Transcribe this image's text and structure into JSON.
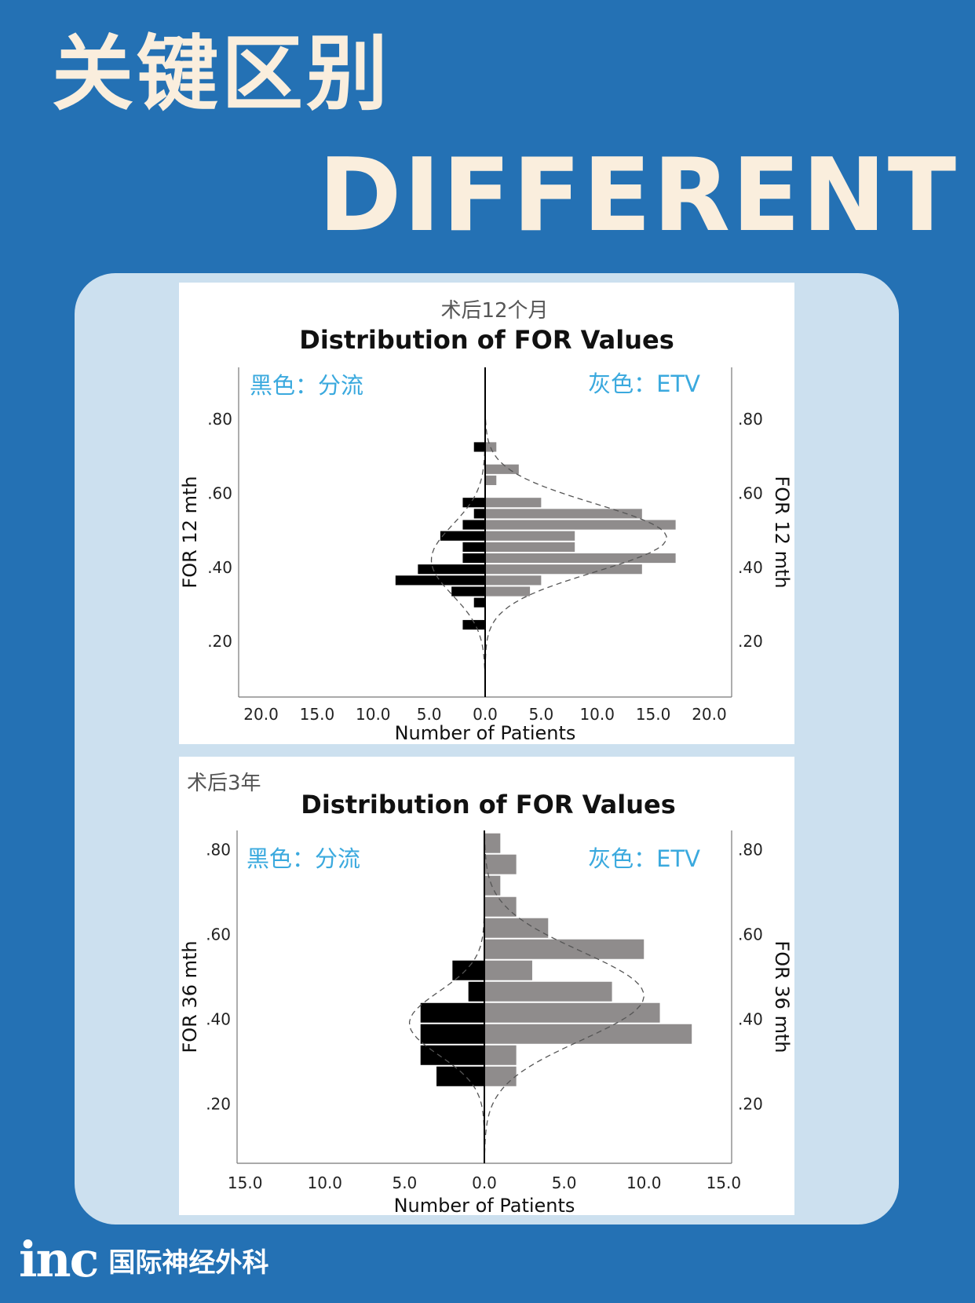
{
  "header": {
    "title": "关键区别",
    "subtitle": "DIFFERENT"
  },
  "footer": {
    "logo": "inc",
    "org": "国际神经外科"
  },
  "colors": {
    "background": "#2471b4",
    "panel": "#cce0ef",
    "shunt": "#000000",
    "etv": "#8f8c8c",
    "legend_text": "#3aa9de",
    "title_text": "#faeedd"
  },
  "chart_data": [
    {
      "type": "bar",
      "orientation": "horizontal-back-to-back",
      "caption": "术后12个月",
      "title": "Distribution of FOR Values",
      "xlabel": "Number of Patients",
      "ylabel": "FOR 12 mth",
      "ylabel_right": "FOR 12 mth",
      "legend_left": "黑色：分流",
      "legend_right": "灰色：ETV",
      "x_ticks": [
        "20.0",
        "15.0",
        "10.0",
        "5.0",
        "0.0",
        "5.0",
        "10.0",
        "15.0",
        "20.0"
      ],
      "x_range": [
        -22,
        22
      ],
      "y_ticks": [
        ".20",
        ".40",
        ".60",
        ".80"
      ],
      "y_range": [
        0.05,
        0.94
      ],
      "grid": false,
      "bin_width": 0.03,
      "series": [
        {
          "name": "黑色：分流",
          "side": "left",
          "bins": [
            {
              "y0": 0.23,
              "y1": 0.26,
              "value": 2
            },
            {
              "y0": 0.29,
              "y1": 0.32,
              "value": 1
            },
            {
              "y0": 0.32,
              "y1": 0.35,
              "value": 3
            },
            {
              "y0": 0.35,
              "y1": 0.38,
              "value": 8
            },
            {
              "y0": 0.38,
              "y1": 0.41,
              "value": 6
            },
            {
              "y0": 0.41,
              "y1": 0.44,
              "value": 2
            },
            {
              "y0": 0.44,
              "y1": 0.47,
              "value": 2
            },
            {
              "y0": 0.47,
              "y1": 0.5,
              "value": 4
            },
            {
              "y0": 0.5,
              "y1": 0.53,
              "value": 2
            },
            {
              "y0": 0.53,
              "y1": 0.56,
              "value": 1
            },
            {
              "y0": 0.56,
              "y1": 0.59,
              "value": 2
            },
            {
              "y0": 0.71,
              "y1": 0.74,
              "value": 1
            }
          ],
          "curve": {
            "mean": 0.42,
            "sd": 0.095,
            "peak": 4.8
          }
        },
        {
          "name": "灰色：ETV",
          "side": "right",
          "bins": [
            {
              "y0": 0.32,
              "y1": 0.35,
              "value": 4
            },
            {
              "y0": 0.35,
              "y1": 0.38,
              "value": 5
            },
            {
              "y0": 0.38,
              "y1": 0.41,
              "value": 14
            },
            {
              "y0": 0.41,
              "y1": 0.44,
              "value": 17
            },
            {
              "y0": 0.44,
              "y1": 0.47,
              "value": 8
            },
            {
              "y0": 0.47,
              "y1": 0.5,
              "value": 8
            },
            {
              "y0": 0.5,
              "y1": 0.53,
              "value": 17
            },
            {
              "y0": 0.53,
              "y1": 0.56,
              "value": 14
            },
            {
              "y0": 0.56,
              "y1": 0.59,
              "value": 5
            },
            {
              "y0": 0.62,
              "y1": 0.65,
              "value": 1
            },
            {
              "y0": 0.65,
              "y1": 0.68,
              "value": 3
            },
            {
              "y0": 0.71,
              "y1": 0.74,
              "value": 1
            }
          ],
          "curve": {
            "mean": 0.48,
            "sd": 0.092,
            "peak": 16.2
          }
        }
      ]
    },
    {
      "type": "bar",
      "orientation": "horizontal-back-to-back",
      "caption": "术后3年",
      "title": "Distribution of FOR Values",
      "xlabel": "Number of Patients",
      "ylabel": "FOR 36 mth",
      "ylabel_right": "FOR 36 mth",
      "legend_left": "黑色：分流",
      "legend_right": "灰色：ETV",
      "x_ticks": [
        "15.0",
        "10.0",
        "5.0",
        "0.0",
        "5.0",
        "10.0",
        "15.0"
      ],
      "x_range": [
        -15.5,
        15.5
      ],
      "y_ticks": [
        ".20",
        ".40",
        ".60",
        ".80"
      ],
      "y_range": [
        0.06,
        0.845
      ],
      "grid": false,
      "bin_width": 0.05,
      "series": [
        {
          "name": "黑色：分流",
          "side": "left",
          "bins": [
            {
              "y0": 0.24,
              "y1": 0.29,
              "value": 3
            },
            {
              "y0": 0.29,
              "y1": 0.34,
              "value": 4
            },
            {
              "y0": 0.34,
              "y1": 0.39,
              "value": 4
            },
            {
              "y0": 0.39,
              "y1": 0.44,
              "value": 4
            },
            {
              "y0": 0.44,
              "y1": 0.49,
              "value": 1
            },
            {
              "y0": 0.49,
              "y1": 0.54,
              "value": 2
            }
          ],
          "curve": {
            "mean": 0.39,
            "sd": 0.075,
            "peak": 4.7
          }
        },
        {
          "name": "灰色：ETV",
          "side": "right",
          "bins": [
            {
              "y0": 0.24,
              "y1": 0.29,
              "value": 2
            },
            {
              "y0": 0.29,
              "y1": 0.34,
              "value": 2
            },
            {
              "y0": 0.34,
              "y1": 0.39,
              "value": 13
            },
            {
              "y0": 0.39,
              "y1": 0.44,
              "value": 11
            },
            {
              "y0": 0.44,
              "y1": 0.49,
              "value": 8
            },
            {
              "y0": 0.49,
              "y1": 0.54,
              "value": 3
            },
            {
              "y0": 0.54,
              "y1": 0.59,
              "value": 10
            },
            {
              "y0": 0.59,
              "y1": 0.64,
              "value": 4
            },
            {
              "y0": 0.64,
              "y1": 0.69,
              "value": 2
            },
            {
              "y0": 0.69,
              "y1": 0.74,
              "value": 1
            },
            {
              "y0": 0.74,
              "y1": 0.79,
              "value": 2
            },
            {
              "y0": 0.79,
              "y1": 0.84,
              "value": 1
            }
          ],
          "curve": {
            "mean": 0.455,
            "sd": 0.105,
            "peak": 10
          }
        }
      ]
    }
  ]
}
